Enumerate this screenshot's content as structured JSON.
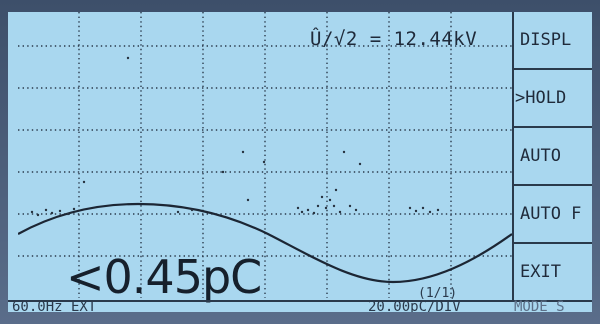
{
  "measurement": {
    "formula_label": "Û/√2 = 12.44kV",
    "reading": "<0.45pC",
    "page_indicator": "(1/1)"
  },
  "softkeys": [
    {
      "label": "DISPL"
    },
    {
      "label": ">HOLD"
    },
    {
      "label": "AUTO"
    },
    {
      "label": "AUTO F"
    },
    {
      "label": "EXIT"
    }
  ],
  "status": {
    "frequency": "60.0Hz EXT",
    "scale": "20.00pC/DIV",
    "mode": "MODE S"
  },
  "colors": {
    "lcd_background": "#a9d7ef",
    "foreground": "#1f2a3a",
    "bezel": "#4a5d78"
  }
}
